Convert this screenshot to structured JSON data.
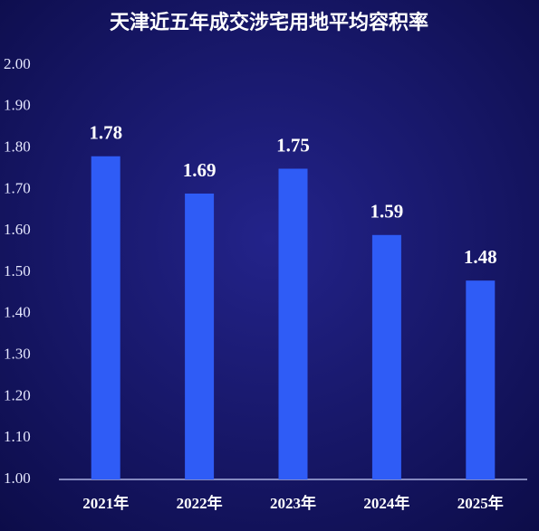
{
  "chart_data": {
    "type": "bar",
    "title": "天津近五年成交涉宅用地平均容积率",
    "categories": [
      "2021年",
      "2022年",
      "2023年",
      "2024年",
      "2025年"
    ],
    "values": [
      1.78,
      1.69,
      1.75,
      1.59,
      1.48
    ],
    "color": "#2f5cf6",
    "ylim": [
      1.0,
      2.0
    ],
    "yticks": [
      {
        "value": 1.0,
        "label": "1.00"
      },
      {
        "value": 1.1,
        "label": "1.10"
      },
      {
        "value": 1.2,
        "label": "1.20"
      },
      {
        "value": 1.3,
        "label": "1.30"
      },
      {
        "value": 1.4,
        "label": "1.40"
      },
      {
        "value": 1.5,
        "label": "1.50"
      },
      {
        "value": 1.6,
        "label": "1.60"
      },
      {
        "value": 1.7,
        "label": "1.70"
      },
      {
        "value": 1.8,
        "label": "1.80"
      },
      {
        "value": 1.9,
        "label": "1.90"
      },
      {
        "value": 2.0,
        "label": "2.00"
      }
    ],
    "grid": false
  }
}
